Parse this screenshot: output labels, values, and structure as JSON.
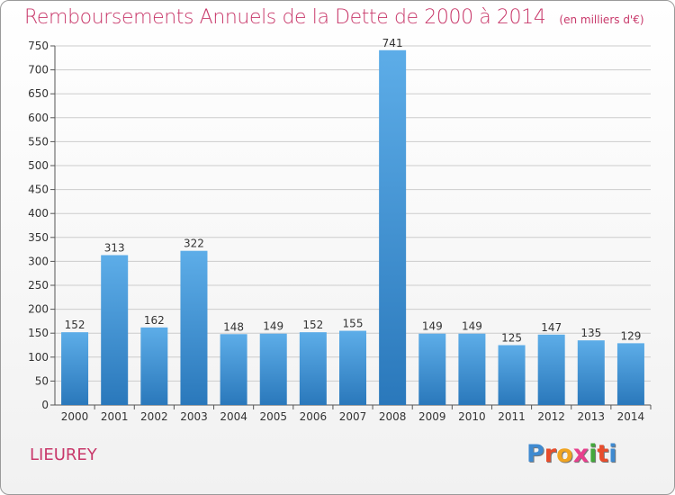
{
  "title": "Remboursements Annuels de la Dette de 2000 à 2014",
  "unit_label": "(en milliers d'€)",
  "commune": "LIEUREY",
  "logo": {
    "text": "Proxiti",
    "colors": [
      "#3f8ad0",
      "#e84d2c",
      "#f0a421",
      "#e8408e",
      "#43a83c",
      "#e84d2c",
      "#3f8ad0"
    ]
  },
  "colors": {
    "title": "#c8386a",
    "bar_top": "#5dade8",
    "bar_bottom": "#2a78bb",
    "grid": "#cccccc"
  },
  "chart_data": {
    "type": "bar",
    "title": "Remboursements Annuels de la Dette de 2000 à 2014",
    "xlabel": "",
    "ylabel": "",
    "categories": [
      "2000",
      "2001",
      "2002",
      "2003",
      "2004",
      "2005",
      "2006",
      "2007",
      "2008",
      "2009",
      "2010",
      "2011",
      "2012",
      "2013",
      "2014"
    ],
    "values": [
      152,
      313,
      162,
      322,
      148,
      149,
      152,
      155,
      741,
      149,
      149,
      125,
      147,
      135,
      129
    ],
    "ylim": [
      0,
      750
    ],
    "yticks": [
      0,
      50,
      100,
      150,
      200,
      250,
      300,
      350,
      400,
      450,
      500,
      550,
      600,
      650,
      700,
      750
    ],
    "grid": true,
    "data_labels": true
  }
}
